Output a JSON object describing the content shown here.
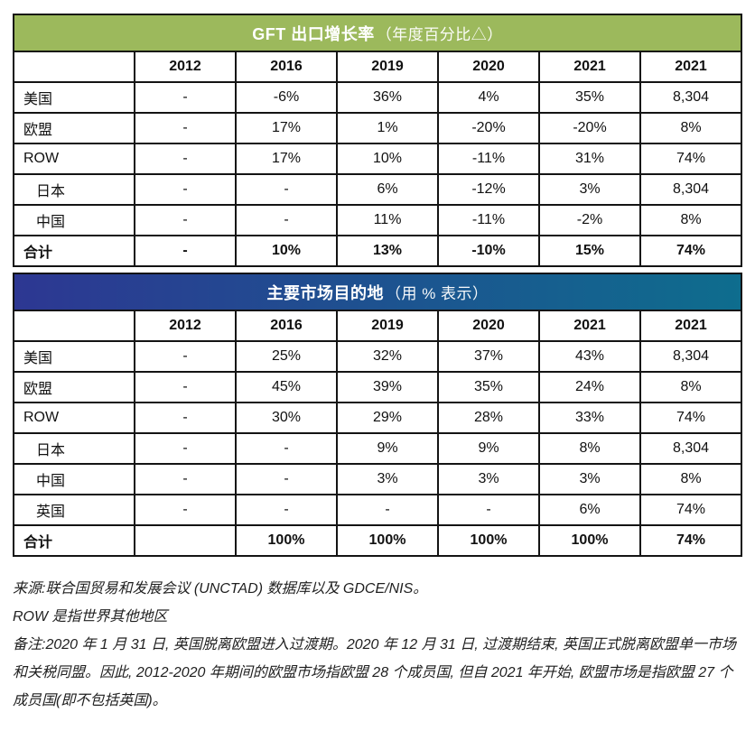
{
  "colors": {
    "table1_header_bg": "#9cb95c",
    "table2_header_bg_left": "#2d3792",
    "table2_header_bg_right": "#0e6d8e",
    "border": "#141414",
    "title_text": "#ffffff"
  },
  "table1": {
    "title_bold": "GFT 出口增长率",
    "title_light": "（年度百分比△）",
    "columns": [
      "",
      "2012",
      "2016",
      "2019",
      "2020",
      "2021",
      "2021"
    ],
    "rows": [
      {
        "label": "美国",
        "indent": false,
        "bold": false,
        "values": [
          "-",
          "-6%",
          "36%",
          "4%",
          "35%",
          "8,304"
        ]
      },
      {
        "label": "欧盟",
        "indent": false,
        "bold": false,
        "values": [
          "-",
          "17%",
          "1%",
          "-20%",
          "-20%",
          "8%"
        ]
      },
      {
        "label": "ROW",
        "indent": false,
        "bold": false,
        "values": [
          "-",
          "17%",
          "10%",
          "-11%",
          "31%",
          "74%"
        ]
      },
      {
        "label": "日本",
        "indent": true,
        "bold": false,
        "values": [
          "-",
          "-",
          "6%",
          "-12%",
          "3%",
          "8,304"
        ]
      },
      {
        "label": "中国",
        "indent": true,
        "bold": false,
        "values": [
          "-",
          "-",
          "11%",
          "-11%",
          "-2%",
          "8%"
        ]
      },
      {
        "label": "合计",
        "indent": false,
        "bold": true,
        "values": [
          "-",
          "10%",
          "13%",
          "-10%",
          "15%",
          "74%"
        ]
      }
    ]
  },
  "table2": {
    "title_bold": "主要市场目的地",
    "title_light": "（用 % 表示）",
    "columns": [
      "",
      "2012",
      "2016",
      "2019",
      "2020",
      "2021",
      "2021"
    ],
    "rows": [
      {
        "label": "美国",
        "indent": false,
        "bold": false,
        "values": [
          "-",
          "25%",
          "32%",
          "37%",
          "43%",
          "8,304"
        ]
      },
      {
        "label": "欧盟",
        "indent": false,
        "bold": false,
        "values": [
          "-",
          "45%",
          "39%",
          "35%",
          "24%",
          "8%"
        ]
      },
      {
        "label": "ROW",
        "indent": false,
        "bold": false,
        "values": [
          "-",
          "30%",
          "29%",
          "28%",
          "33%",
          "74%"
        ]
      },
      {
        "label": "日本",
        "indent": true,
        "bold": false,
        "values": [
          "-",
          "-",
          "9%",
          "9%",
          "8%",
          "8,304"
        ]
      },
      {
        "label": "中国",
        "indent": true,
        "bold": false,
        "values": [
          "-",
          "-",
          "3%",
          "3%",
          "3%",
          "8%"
        ]
      },
      {
        "label": "英国",
        "indent": true,
        "bold": false,
        "values": [
          "-",
          "-",
          "-",
          "-",
          "6%",
          "74%"
        ]
      },
      {
        "label": "合计",
        "indent": false,
        "bold": true,
        "values": [
          "",
          "100%",
          "100%",
          "100%",
          "100%",
          "74%"
        ]
      }
    ]
  },
  "footnotes": {
    "source": "来源:联合国贸易和发展会议 (UNCTAD) 数据库以及 GDCE/NIS。",
    "row_note": "ROW 是指世界其他地区",
    "remark": "备注:2020 年 1 月 31 日, 英国脱离欧盟进入过渡期。2020 年 12 月 31 日, 过渡期结束, 英国正式脱离欧盟单一市场和关税同盟。因此, 2012-2020 年期间的欧盟市场指欧盟 28 个成员国, 但自 2021 年开始, 欧盟市场是指欧盟 27 个成员国(即不包括英国)。"
  }
}
